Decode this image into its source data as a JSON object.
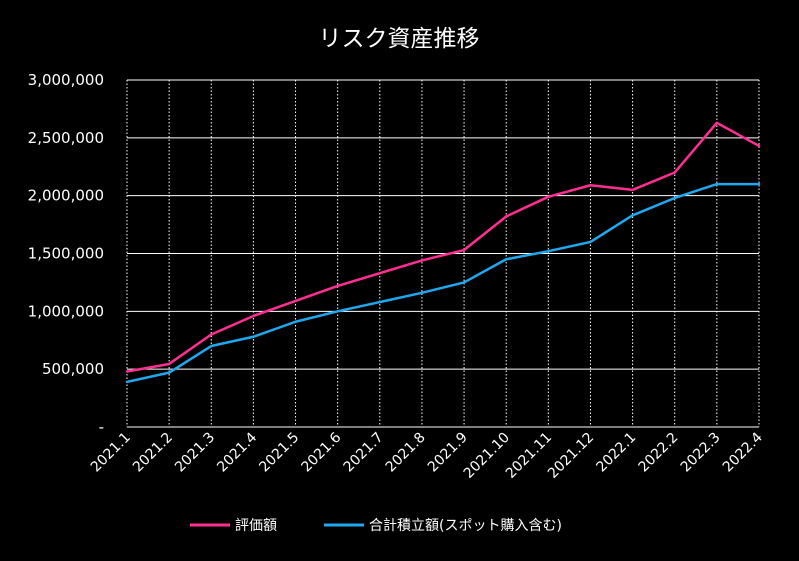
{
  "chart_data": {
    "type": "line",
    "title": "リスク資産推移",
    "categories": [
      "2021.1",
      "2021.2",
      "2021.3",
      "2021.4",
      "2021.5",
      "2021.6",
      "2021.7",
      "2021.8",
      "2021.9",
      "2021.10",
      "2021.11",
      "2021.12",
      "2022.1",
      "2022.2",
      "2022.3",
      "2022.4"
    ],
    "series": [
      {
        "name": "評価額",
        "color": "#ff2f92",
        "values": [
          480000,
          545000,
          800000,
          960000,
          1090000,
          1220000,
          1330000,
          1440000,
          1530000,
          1820000,
          1990000,
          2090000,
          2050000,
          2200000,
          2630000,
          2430000
        ]
      },
      {
        "name": "合計積立額(スポット購入含む)",
        "color": "#1fa8f0",
        "values": [
          390000,
          470000,
          700000,
          780000,
          910000,
          1000000,
          1080000,
          1160000,
          1250000,
          1450000,
          1520000,
          1600000,
          1830000,
          1980000,
          2100000,
          2100000
        ]
      }
    ],
    "ylim": [
      0,
      3000000
    ],
    "yticks": [
      0,
      500000,
      1000000,
      1500000,
      2000000,
      2500000,
      3000000
    ],
    "ytick_labels": [
      "-",
      "500,000",
      "1,000,000",
      "1,500,000",
      "2,000,000",
      "2,500,000",
      "3,000,000"
    ],
    "grid": true,
    "legend_position": "bottom",
    "xlabel": "",
    "ylabel": "",
    "background_color": "#000000",
    "text_color": "#ffffff",
    "grid_color": "#ffffff"
  }
}
